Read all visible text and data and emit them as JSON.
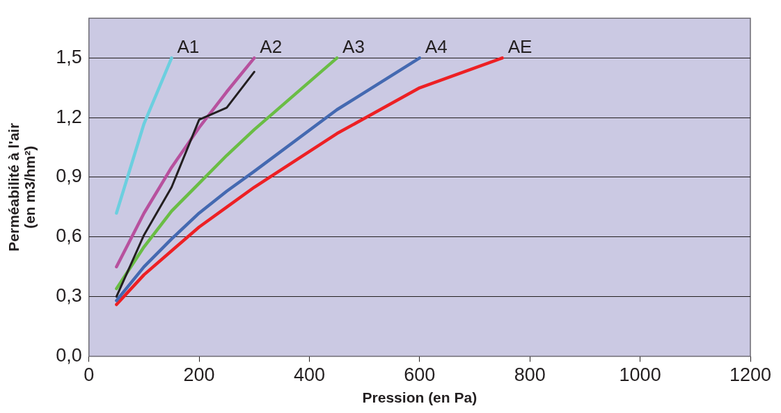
{
  "chart_data": {
    "type": "line",
    "xlabel": "Pression (en Pa)",
    "ylabel": "Perméabilité à l'air\n(en m3/hm²)",
    "xlim": [
      0,
      1200
    ],
    "xticks": [
      0,
      200,
      400,
      600,
      800,
      1000,
      1200
    ],
    "ylim": [
      0,
      1.7
    ],
    "yticks": [
      {
        "value": 0,
        "label": "0,0"
      },
      {
        "value": 0.3,
        "label": "0,3"
      },
      {
        "value": 0.6,
        "label": "0,6"
      },
      {
        "value": 0.9,
        "label": "0,9"
      },
      {
        "value": 1.2,
        "label": "1,2"
      },
      {
        "value": 1.5,
        "label": "1,5"
      }
    ],
    "grid": "y",
    "legend": false,
    "marker": "none",
    "line_style": "solid",
    "series": [
      {
        "name": "A1",
        "color": "#6ccfdf",
        "x": [
          50,
          100,
          150
        ],
        "values": [
          0.72,
          1.17,
          1.5
        ]
      },
      {
        "color": "#231f20",
        "x": [
          50,
          100,
          150,
          200,
          250,
          300
        ],
        "values": [
          0.3,
          0.61,
          0.85,
          1.19,
          1.25,
          1.43
        ]
      },
      {
        "name": "A2",
        "color": "#b7519e",
        "x": [
          50,
          100,
          150,
          200,
          250,
          300
        ],
        "values": [
          0.45,
          0.72,
          0.95,
          1.15,
          1.33,
          1.5
        ]
      },
      {
        "name": "A3",
        "color": "#6abd45",
        "x": [
          50,
          100,
          150,
          200,
          250,
          300,
          450
        ],
        "values": [
          0.34,
          0.55,
          0.73,
          0.87,
          1.01,
          1.14,
          1.5
        ]
      },
      {
        "name": "A4",
        "color": "#4469b1",
        "x": [
          50,
          100,
          150,
          200,
          250,
          300,
          450,
          600
        ],
        "values": [
          0.28,
          0.45,
          0.59,
          0.72,
          0.83,
          0.93,
          1.24,
          1.5
        ]
      },
      {
        "name": "AE",
        "color": "#ed2024",
        "x": [
          50,
          100,
          150,
          200,
          250,
          300,
          450,
          600,
          750
        ],
        "values": [
          0.26,
          0.41,
          0.53,
          0.65,
          0.75,
          0.85,
          1.12,
          1.35,
          1.5
        ]
      }
    ]
  }
}
